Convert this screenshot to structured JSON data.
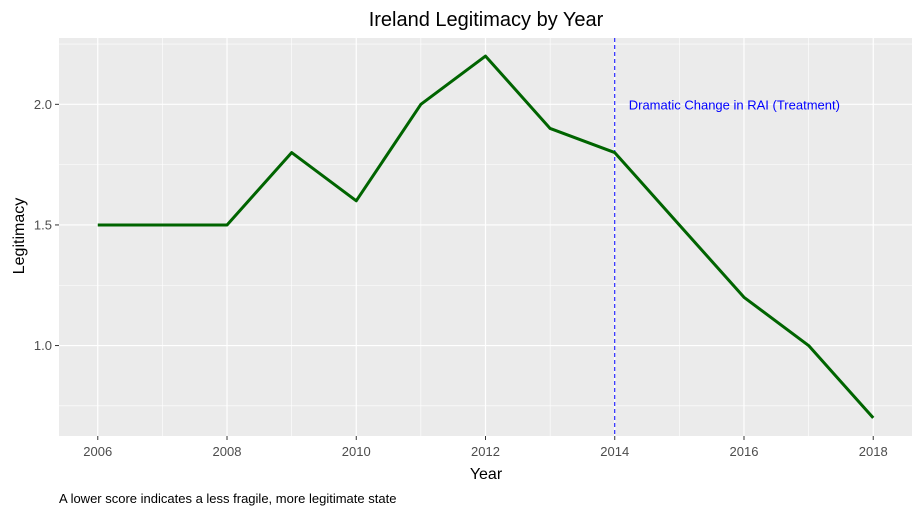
{
  "chart_data": {
    "type": "line",
    "title": "Ireland Legitimacy by Year",
    "xlabel": "Year",
    "ylabel": "Legitimacy",
    "caption": "A lower score indicates a less fragile, more legitimate state",
    "x": [
      2006,
      2007,
      2008,
      2009,
      2010,
      2011,
      2012,
      2013,
      2014,
      2015,
      2016,
      2017,
      2018
    ],
    "series": [
      {
        "values": [
          1.5,
          1.5,
          1.5,
          1.8,
          1.6,
          2.0,
          2.2,
          1.9,
          1.8,
          1.5,
          1.2,
          1.0,
          0.7
        ],
        "color": "#006400"
      }
    ],
    "xlim": [
      2005.4,
      2018.6
    ],
    "ylim": [
      0.625,
      2.275
    ],
    "x_ticks": [
      2006,
      2008,
      2010,
      2012,
      2014,
      2016,
      2018
    ],
    "x_tick_labels": [
      "2006",
      "2008",
      "2010",
      "2012",
      "2014",
      "2016",
      "2018"
    ],
    "y_ticks": [
      1.0,
      1.5,
      2.0
    ],
    "y_tick_labels": [
      "1.0",
      "1.5",
      "2.0"
    ],
    "grid": true,
    "background": "#EBEBEB",
    "annotations": [
      {
        "type": "vline",
        "x": 2014,
        "color": "#0000FF",
        "linestyle": "dashed",
        "label": "Dramatic Change in RAI (Treatment)",
        "label_y": 2.0
      }
    ]
  }
}
